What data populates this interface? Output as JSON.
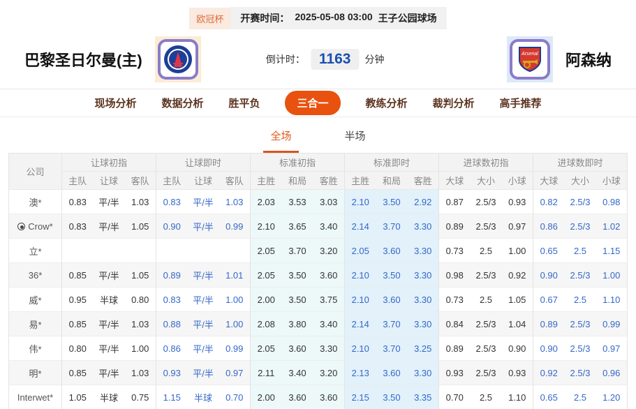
{
  "colors": {
    "accent_orange": "#e8520e",
    "subtab_orange": "#e2571c",
    "league_badge_bg": "#faeadf",
    "league_badge_text": "#e2693a",
    "countdown_blue": "#1a4fb0",
    "live_odds_blue": "#3468c8",
    "std_initial_bg": "#edf8f8",
    "std_live_bg": "#e2f1fa"
  },
  "top_bar": {
    "league": "欧冠杯",
    "kickoff_label": "开赛时间：",
    "kickoff_time": "2025-05-08 03:00",
    "venue": "王子公园球场"
  },
  "match": {
    "home_name": "巴黎圣日尔曼(主)",
    "home_badge": "psg-crest",
    "away_name": "阿森纳",
    "away_badge": "arsenal-crest",
    "countdown_label": "倒计时：",
    "countdown_value": "1163",
    "countdown_unit": "分钟"
  },
  "tabs": [
    {
      "label": "现场分析",
      "active": false
    },
    {
      "label": "数据分析",
      "active": false
    },
    {
      "label": "胜平负",
      "active": false
    },
    {
      "label": "三合一",
      "active": true
    },
    {
      "label": "教练分析",
      "active": false
    },
    {
      "label": "裁判分析",
      "active": false
    },
    {
      "label": "高手推荐",
      "active": false
    }
  ],
  "subtabs": [
    {
      "label": "全场",
      "active": true
    },
    {
      "label": "半场",
      "active": false
    }
  ],
  "table": {
    "company_header": "公司",
    "groups": [
      {
        "label": "让球初指",
        "cols": [
          "主队",
          "让球",
          "客队"
        ],
        "live": false,
        "bg": "plain"
      },
      {
        "label": "让球即时",
        "cols": [
          "主队",
          "让球",
          "客队"
        ],
        "live": true,
        "bg": "plain"
      },
      {
        "label": "标准初指",
        "cols": [
          "主胜",
          "和局",
          "客胜"
        ],
        "live": false,
        "bg": "cyan"
      },
      {
        "label": "标准即时",
        "cols": [
          "主胜",
          "和局",
          "客胜"
        ],
        "live": true,
        "bg": "cyan2"
      },
      {
        "label": "进球数初指",
        "cols": [
          "大球",
          "大小",
          "小球"
        ],
        "live": false,
        "bg": "plain"
      },
      {
        "label": "进球数即时",
        "cols": [
          "大球",
          "大小",
          "小球"
        ],
        "live": true,
        "bg": "plain"
      }
    ],
    "rows": [
      {
        "company": "澳*",
        "icon": false,
        "values": [
          [
            "0.83",
            "平/半",
            "1.03"
          ],
          [
            "0.83",
            "平/半",
            "1.03"
          ],
          [
            "2.03",
            "3.53",
            "3.03"
          ],
          [
            "2.10",
            "3.50",
            "2.92"
          ],
          [
            "0.87",
            "2.5/3",
            "0.93"
          ],
          [
            "0.82",
            "2.5/3",
            "0.98"
          ]
        ]
      },
      {
        "company": "Crow*",
        "icon": true,
        "values": [
          [
            "0.83",
            "平/半",
            "1.05"
          ],
          [
            "0.90",
            "平/半",
            "0.99"
          ],
          [
            "2.10",
            "3.65",
            "3.40"
          ],
          [
            "2.14",
            "3.70",
            "3.30"
          ],
          [
            "0.89",
            "2.5/3",
            "0.97"
          ],
          [
            "0.86",
            "2.5/3",
            "1.02"
          ]
        ]
      },
      {
        "company": "立*",
        "icon": false,
        "values": [
          [
            "",
            "",
            ""
          ],
          [
            "",
            "",
            ""
          ],
          [
            "2.05",
            "3.70",
            "3.20"
          ],
          [
            "2.05",
            "3.60",
            "3.30"
          ],
          [
            "0.73",
            "2.5",
            "1.00"
          ],
          [
            "0.65",
            "2.5",
            "1.15"
          ]
        ]
      },
      {
        "company": "36*",
        "icon": false,
        "values": [
          [
            "0.85",
            "平/半",
            "1.05"
          ],
          [
            "0.89",
            "平/半",
            "1.01"
          ],
          [
            "2.05",
            "3.50",
            "3.60"
          ],
          [
            "2.10",
            "3.50",
            "3.30"
          ],
          [
            "0.98",
            "2.5/3",
            "0.92"
          ],
          [
            "0.90",
            "2.5/3",
            "1.00"
          ]
        ]
      },
      {
        "company": "威*",
        "icon": false,
        "values": [
          [
            "0.95",
            "半球",
            "0.80"
          ],
          [
            "0.83",
            "平/半",
            "1.00"
          ],
          [
            "2.00",
            "3.50",
            "3.75"
          ],
          [
            "2.10",
            "3.60",
            "3.30"
          ],
          [
            "0.73",
            "2.5",
            "1.05"
          ],
          [
            "0.67",
            "2.5",
            "1.10"
          ]
        ]
      },
      {
        "company": "易*",
        "icon": false,
        "values": [
          [
            "0.85",
            "平/半",
            "1.03"
          ],
          [
            "0.88",
            "平/半",
            "1.00"
          ],
          [
            "2.08",
            "3.80",
            "3.40"
          ],
          [
            "2.14",
            "3.70",
            "3.30"
          ],
          [
            "0.84",
            "2.5/3",
            "1.04"
          ],
          [
            "0.89",
            "2.5/3",
            "0.99"
          ]
        ]
      },
      {
        "company": "伟*",
        "icon": false,
        "values": [
          [
            "0.80",
            "平/半",
            "1.00"
          ],
          [
            "0.86",
            "平/半",
            "0.99"
          ],
          [
            "2.05",
            "3.60",
            "3.30"
          ],
          [
            "2.10",
            "3.70",
            "3.25"
          ],
          [
            "0.89",
            "2.5/3",
            "0.90"
          ],
          [
            "0.90",
            "2.5/3",
            "0.97"
          ]
        ]
      },
      {
        "company": "明*",
        "icon": false,
        "values": [
          [
            "0.85",
            "平/半",
            "1.03"
          ],
          [
            "0.93",
            "平/半",
            "0.97"
          ],
          [
            "2.11",
            "3.40",
            "3.20"
          ],
          [
            "2.13",
            "3.60",
            "3.30"
          ],
          [
            "0.93",
            "2.5/3",
            "0.93"
          ],
          [
            "0.92",
            "2.5/3",
            "0.96"
          ]
        ]
      },
      {
        "company": "Interwet*",
        "icon": false,
        "values": [
          [
            "1.05",
            "半球",
            "0.75"
          ],
          [
            "1.15",
            "半球",
            "0.70"
          ],
          [
            "2.00",
            "3.60",
            "3.60"
          ],
          [
            "2.15",
            "3.50",
            "3.35"
          ],
          [
            "0.70",
            "2.5",
            "1.10"
          ],
          [
            "0.65",
            "2.5",
            "1.20"
          ]
        ]
      }
    ]
  }
}
